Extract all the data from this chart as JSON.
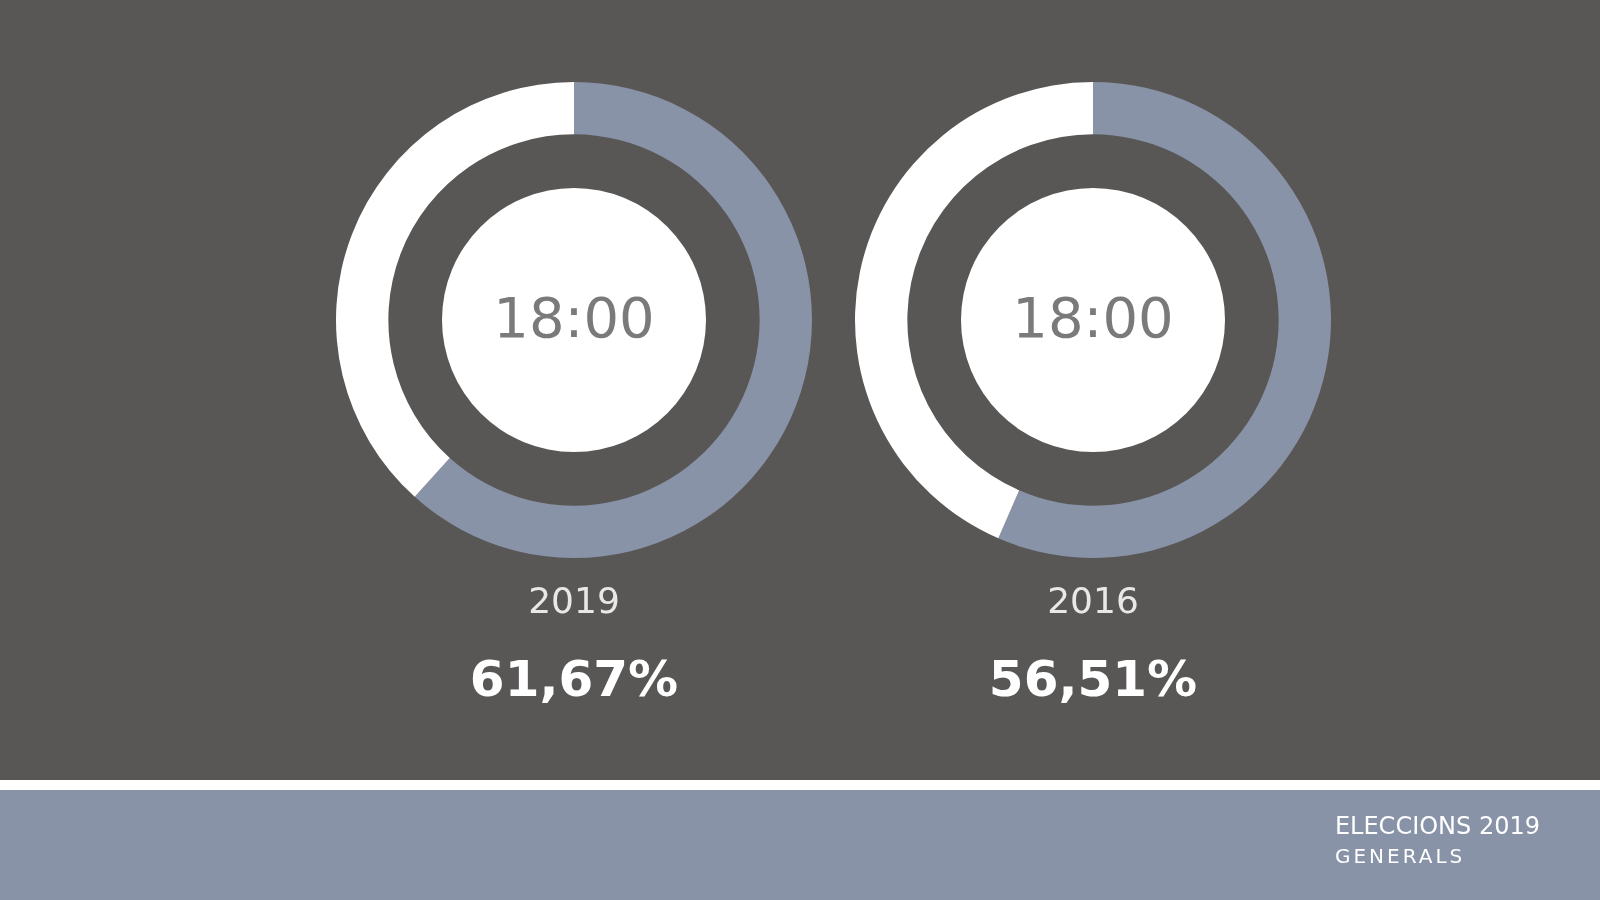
{
  "chart_data": [
    {
      "type": "donut",
      "title": "18:00",
      "xlabel": "2019",
      "categories": [
        null,
        null
      ],
      "values": [
        61.67,
        38.33
      ],
      "colors": [
        "#8893a8",
        "#ffffff"
      ],
      "value_labels": [
        "61,67%",
        null
      ]
    },
    {
      "type": "donut",
      "title": "18:00",
      "xlabel": "2016",
      "categories": [
        null,
        null
      ],
      "values": [
        56.51,
        43.49
      ],
      "colors": [
        "#8893a8",
        "#ffffff"
      ],
      "value_labels": [
        "56,51%",
        null
      ],
      "annotations": [
        "ELECCIONS 2019",
        "GENERALS"
      ]
    }
  ]
}
